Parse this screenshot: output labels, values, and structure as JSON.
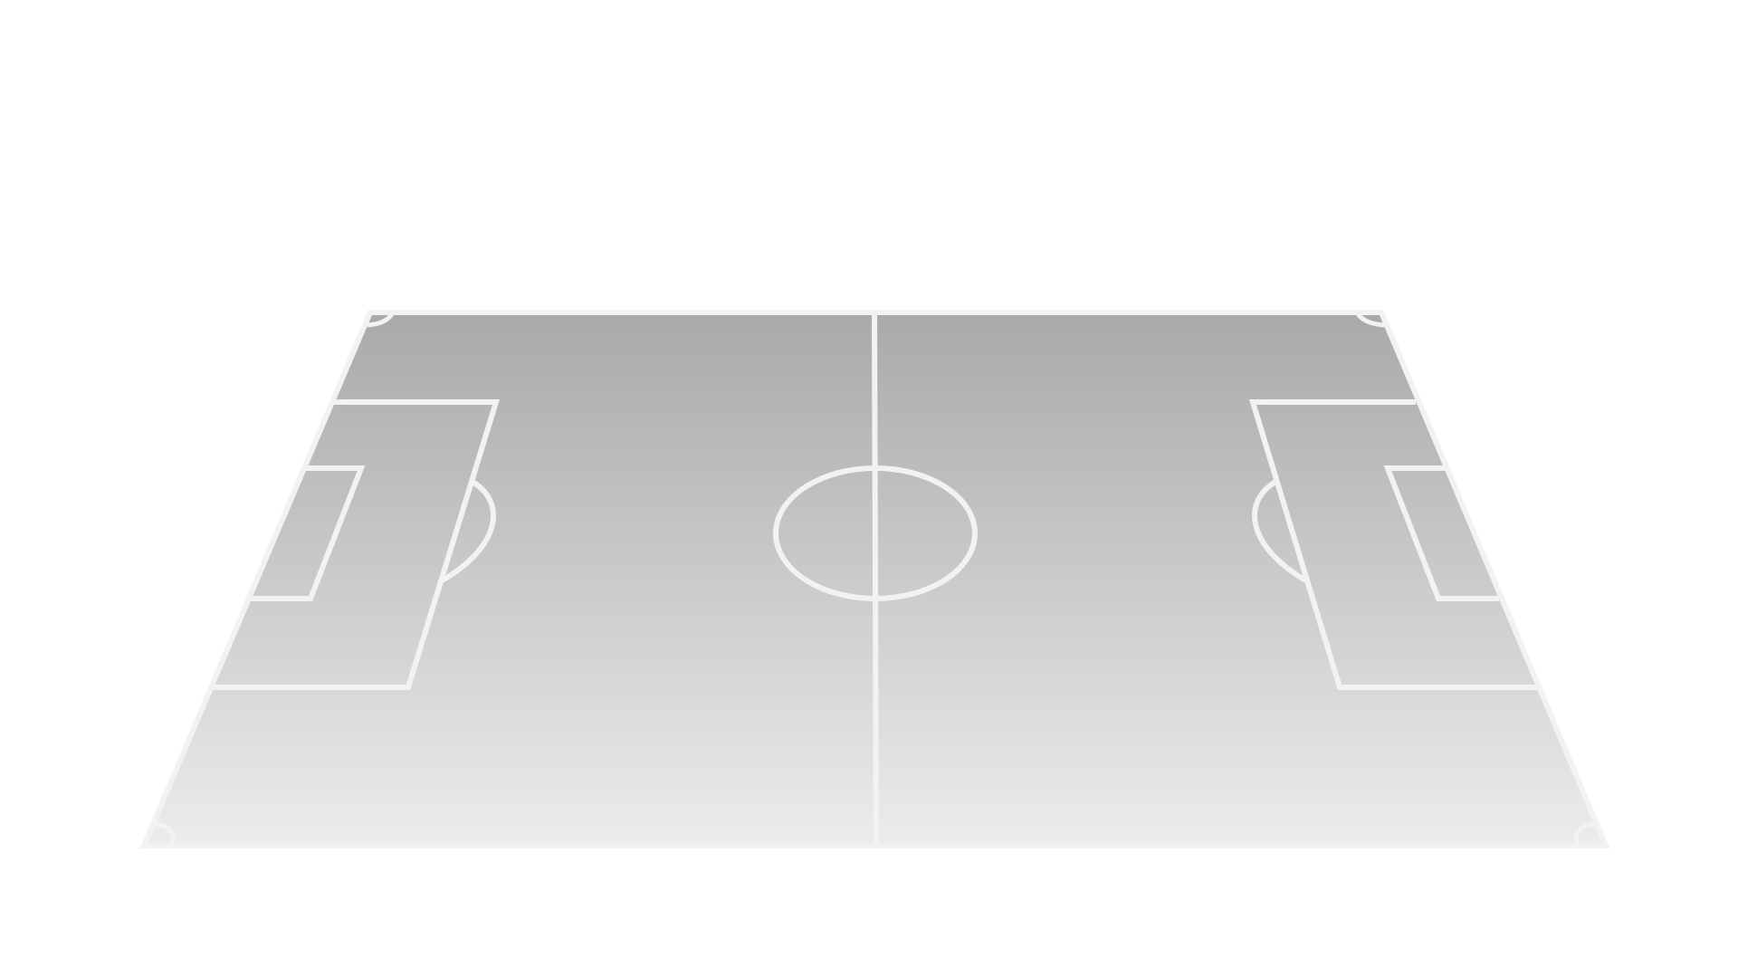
{
  "scene": {
    "subject": "soccer-pitch",
    "view": "perspective",
    "colors": {
      "background": "#ffffff",
      "turf_far": "#a9a9a9",
      "turf_near": "#ececec",
      "lines": "#f4f1f1"
    }
  }
}
